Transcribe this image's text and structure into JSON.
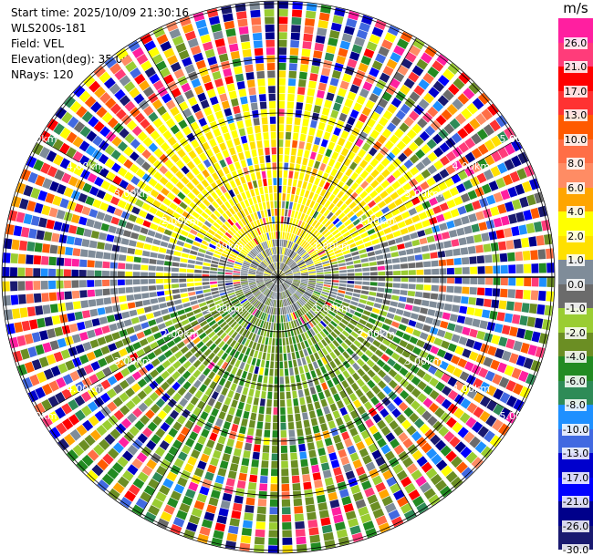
{
  "header": {
    "start_time": "Start time: 2025/10/09 21:30:16",
    "station": "WLS200s-181",
    "field": "Field: VEL",
    "elevation": "Elevation(deg): 35.00",
    "nrays": "NRays: 120"
  },
  "ppi": {
    "nrays": 120,
    "ring_labels": [
      "1.00km",
      "2.00km",
      "3.00km",
      "4.00km",
      "5.00km"
    ]
  },
  "colorbar": {
    "title": "m/s",
    "segments": [
      {
        "label": "26.0",
        "color": "#ff1fa0"
      },
      {
        "label": "21.0",
        "color": "#ff3c7a"
      },
      {
        "label": "17.0",
        "color": "#ff0000"
      },
      {
        "label": "13.0",
        "color": "#ff3232"
      },
      {
        "label": "10.0",
        "color": "#ff5a00"
      },
      {
        "label": "8.0",
        "color": "#ff6e46"
      },
      {
        "label": "6.0",
        "color": "#ff8c64"
      },
      {
        "label": "4.0",
        "color": "#ffa500"
      },
      {
        "label": "2.0",
        "color": "#ffff00"
      },
      {
        "label": "1.0",
        "color": "#ffe000"
      },
      {
        "label": "0.0",
        "color": "#7f8c99"
      },
      {
        "label": "-1.0",
        "color": "#6b6b6b"
      },
      {
        "label": "-2.0",
        "color": "#9acd32"
      },
      {
        "label": "-4.0",
        "color": "#6b8e23"
      },
      {
        "label": "-6.0",
        "color": "#228b22"
      },
      {
        "label": "-8.0",
        "color": "#2e8b57"
      },
      {
        "label": "-10.0",
        "color": "#1e90ff"
      },
      {
        "label": "-13.0",
        "color": "#4169e1"
      },
      {
        "label": "-17.0",
        "color": "#0000cd"
      },
      {
        "label": "-21.0",
        "color": "#0000ff"
      },
      {
        "label": "-26.0",
        "color": "#00008b"
      },
      {
        "label": "",
        "color": "#191970"
      }
    ],
    "bottom_label": "-30.0"
  }
}
